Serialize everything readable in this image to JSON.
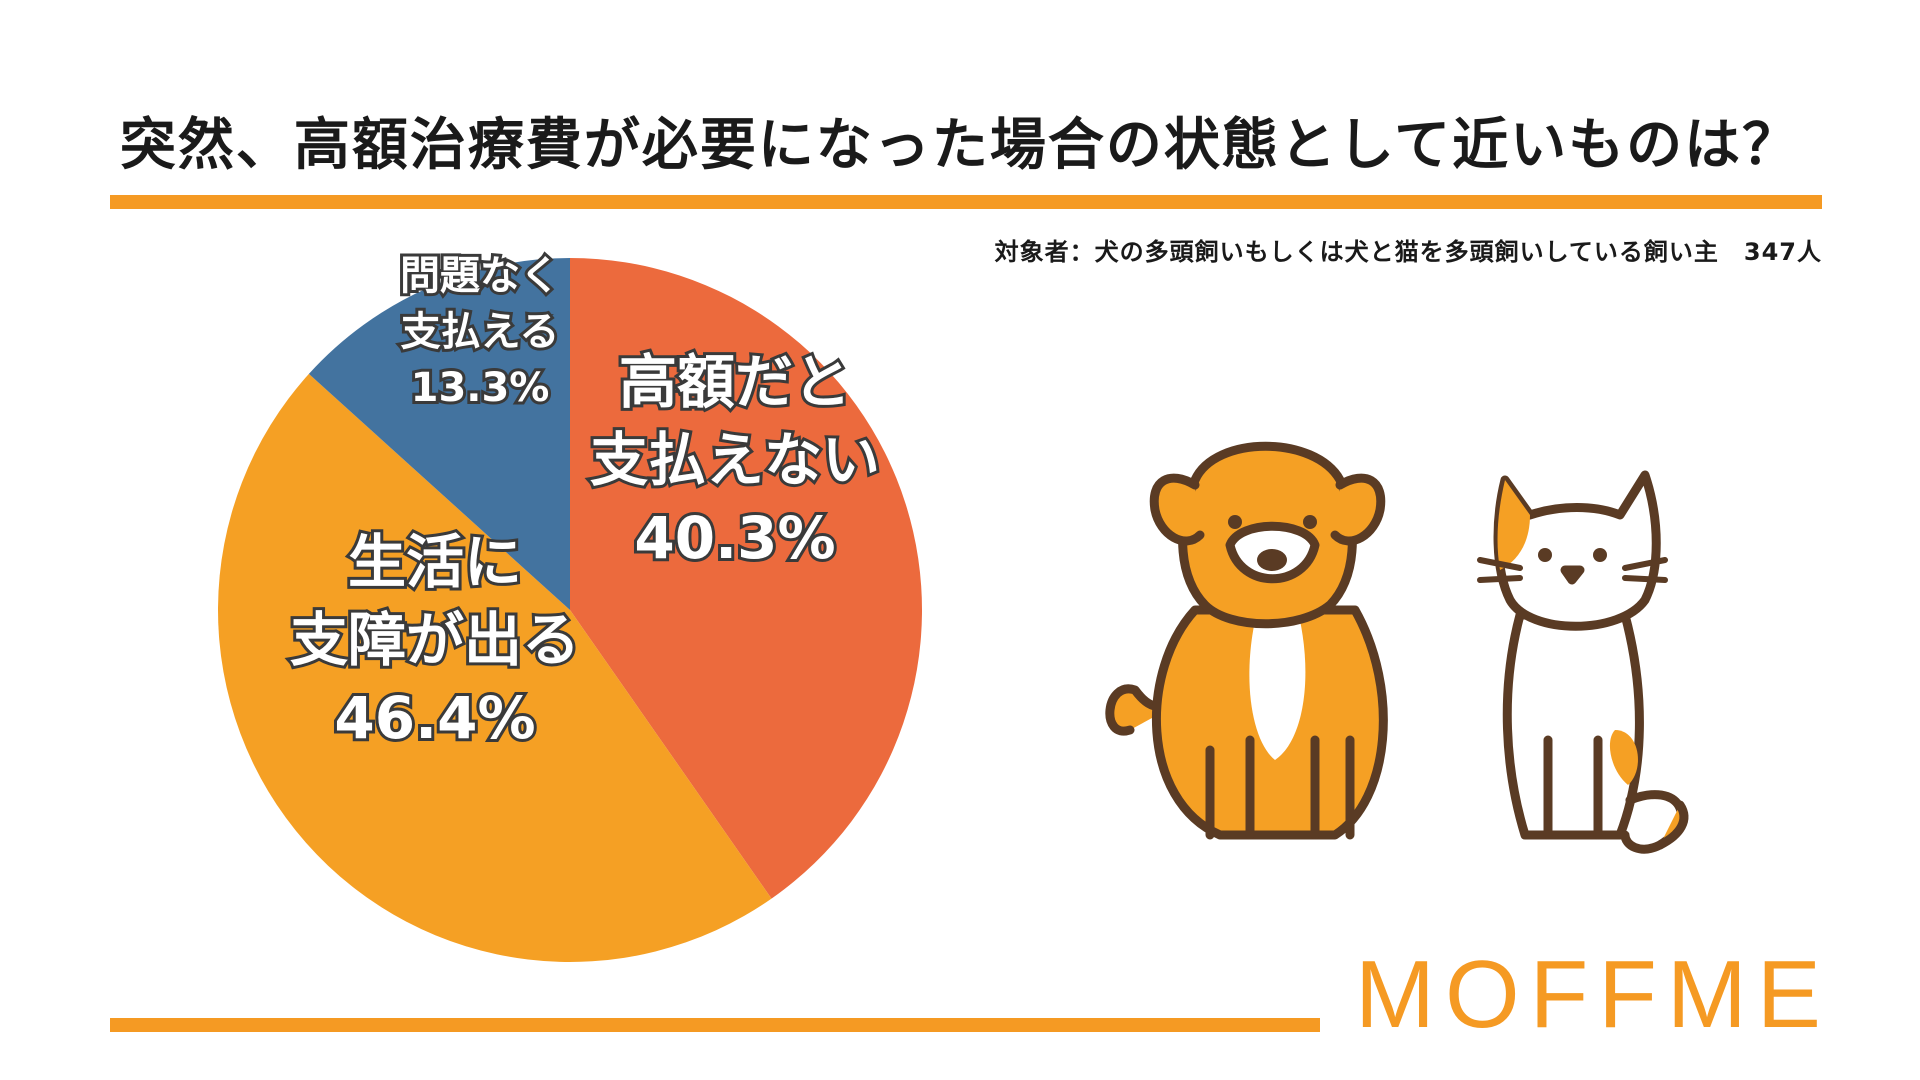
{
  "title": "突然、高額治療費が必要になった場合の状態として近いものは？",
  "subtitle": "対象者：犬の多頭飼いもしくは犬と猫を多頭飼いしている飼い主　347人",
  "brand": "MOFFME",
  "chart_data": {
    "type": "pie",
    "slices": [
      {
        "label_lines": [
          "高額だと",
          "支払えない"
        ],
        "value": 40.3,
        "value_label": "40.3%",
        "color": "#ec6a3d"
      },
      {
        "label_lines": [
          "生活に",
          "支障が出る"
        ],
        "value": 46.4,
        "value_label": "46.4%",
        "color": "#f5a024"
      },
      {
        "label_lines": [
          "問題なく",
          "支払える"
        ],
        "value": 13.3,
        "value_label": "13.3%",
        "color": "#43739f"
      }
    ],
    "start": "12 o'clock",
    "direction": "clockwise"
  },
  "illustration": {
    "subjects": [
      "dog-icon",
      "cat-icon"
    ]
  }
}
